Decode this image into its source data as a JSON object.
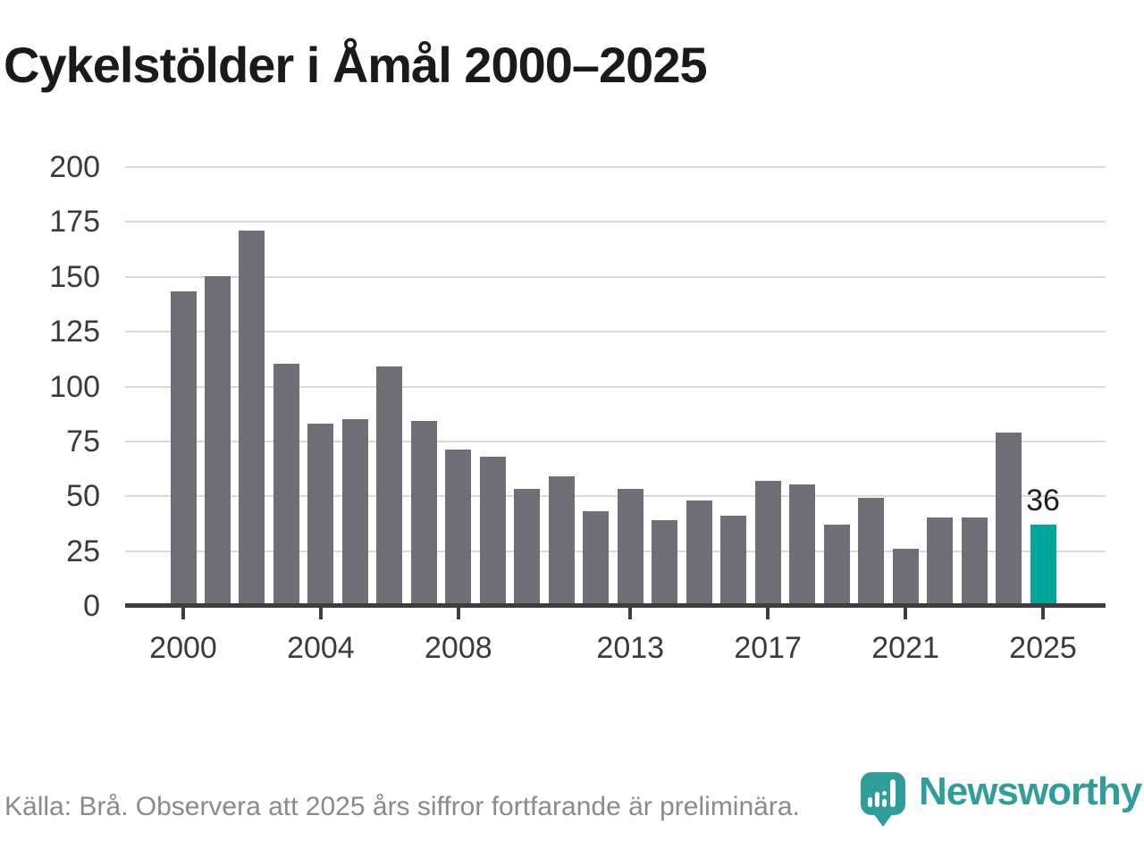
{
  "title": "Cykelstölder i Åmål 2000–2025",
  "footer": {
    "source_note": "Källa: Brå. Observera att 2025 års siffror fortfarande är preliminära."
  },
  "logo": {
    "brand_name": "Newsworthy",
    "brand_color": "#2f9e99",
    "icon": "newsworthy-barchart-pin-icon"
  },
  "chart_data": {
    "type": "bar",
    "title": "Cykelstölder i Åmål 2000–2025",
    "xlabel": "",
    "ylabel": "",
    "categories": [
      2000,
      2001,
      2002,
      2003,
      2004,
      2005,
      2006,
      2007,
      2008,
      2009,
      2010,
      2011,
      2012,
      2013,
      2014,
      2015,
      2016,
      2017,
      2018,
      2019,
      2020,
      2021,
      2022,
      2023,
      2024,
      2025
    ],
    "values": [
      142,
      149,
      170,
      109,
      82,
      84,
      108,
      83,
      70,
      67,
      52,
      58,
      42,
      52,
      38,
      47,
      40,
      56,
      54,
      36,
      48,
      25,
      39,
      39,
      78,
      36
    ],
    "highlight_index": 25,
    "highlight_value_label": "36",
    "y_ticks": [
      0,
      25,
      50,
      75,
      100,
      125,
      150,
      175,
      200
    ],
    "ylim": [
      0,
      200
    ],
    "x_tick_years": [
      2000,
      2004,
      2008,
      2013,
      2017,
      2021,
      2025
    ],
    "x_tick_labels": [
      "2000",
      "2004",
      "2008",
      "2013",
      "2017",
      "2021",
      "2025"
    ],
    "grid": true,
    "legend": "none",
    "colors": {
      "bar": "#6e6e76",
      "highlight_bar": "#00a59c",
      "gridline": "#dadada",
      "axis": "#3d3d3d",
      "tick_label": "#3a3a3a",
      "annotation": "#1f1f1f"
    }
  }
}
